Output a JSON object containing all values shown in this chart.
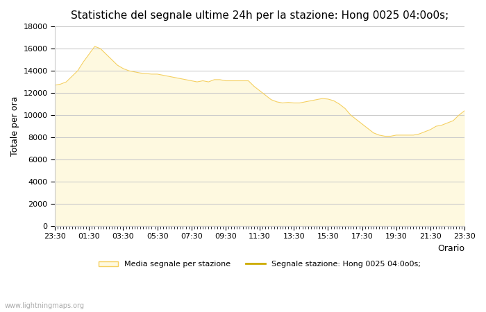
{
  "title": "Statistiche del segnale ultime 24h per la stazione: Hong 0025 04:0o0s;",
  "xlabel": "Orario",
  "ylabel": "Totale per ora",
  "x_ticks": [
    "23:30",
    "01:30",
    "03:30",
    "05:30",
    "07:30",
    "09:30",
    "11:30",
    "13:30",
    "15:30",
    "17:30",
    "19:30",
    "21:30",
    "23:30"
  ],
  "ylim": [
    0,
    18000
  ],
  "yticks": [
    0,
    2000,
    4000,
    6000,
    8000,
    10000,
    12000,
    14000,
    16000,
    18000
  ],
  "fill_color": "#fef9e0",
  "fill_edge_color": "#f5d060",
  "line_color": "#ccaa00",
  "bg_color": "#ffffff",
  "grid_color": "#cccccc",
  "watermark": "www.lightningmaps.org",
  "legend_fill_label": "Media segnale per stazione",
  "legend_line_label": "Segnale stazione: Hong 0025 04:0o0s;",
  "x_values": [
    0,
    2,
    4,
    6,
    8,
    10,
    12,
    14,
    16,
    18,
    20,
    22,
    24,
    26,
    28,
    30,
    32,
    34,
    36,
    38,
    40,
    42,
    44,
    46,
    48,
    50,
    52,
    54,
    56,
    58,
    60,
    62,
    64,
    66,
    68,
    70,
    72,
    74,
    76,
    78,
    80,
    82,
    84,
    86,
    88,
    90,
    92,
    94,
    96,
    98,
    100,
    102,
    104,
    106,
    108,
    110,
    112,
    114,
    116,
    118,
    120,
    122,
    124,
    126,
    128,
    130,
    132,
    134,
    136,
    138,
    140,
    142,
    144
  ],
  "y_values": [
    12700,
    12800,
    13000,
    13500,
    14000,
    14800,
    15500,
    16200,
    16000,
    15500,
    15000,
    14500,
    14200,
    14000,
    13900,
    13800,
    13750,
    13700,
    13700,
    13600,
    13500,
    13400,
    13300,
    13200,
    13100,
    13000,
    13100,
    13000,
    13200,
    13200,
    13100,
    13100,
    13100,
    13100,
    13100,
    12600,
    12200,
    11800,
    11400,
    11200,
    11100,
    11150,
    11100,
    11100,
    11200,
    11300,
    11400,
    11500,
    11450,
    11300,
    11000,
    10600,
    10000,
    9600,
    9200,
    8800,
    8400,
    8200,
    8100,
    8100,
    8200,
    8200,
    8200,
    8200,
    8300,
    8500,
    8700,
    9000,
    9100,
    9300,
    9500,
    10000,
    10400
  ],
  "title_fontsize": 11,
  "axis_fontsize": 9,
  "tick_fontsize": 8
}
